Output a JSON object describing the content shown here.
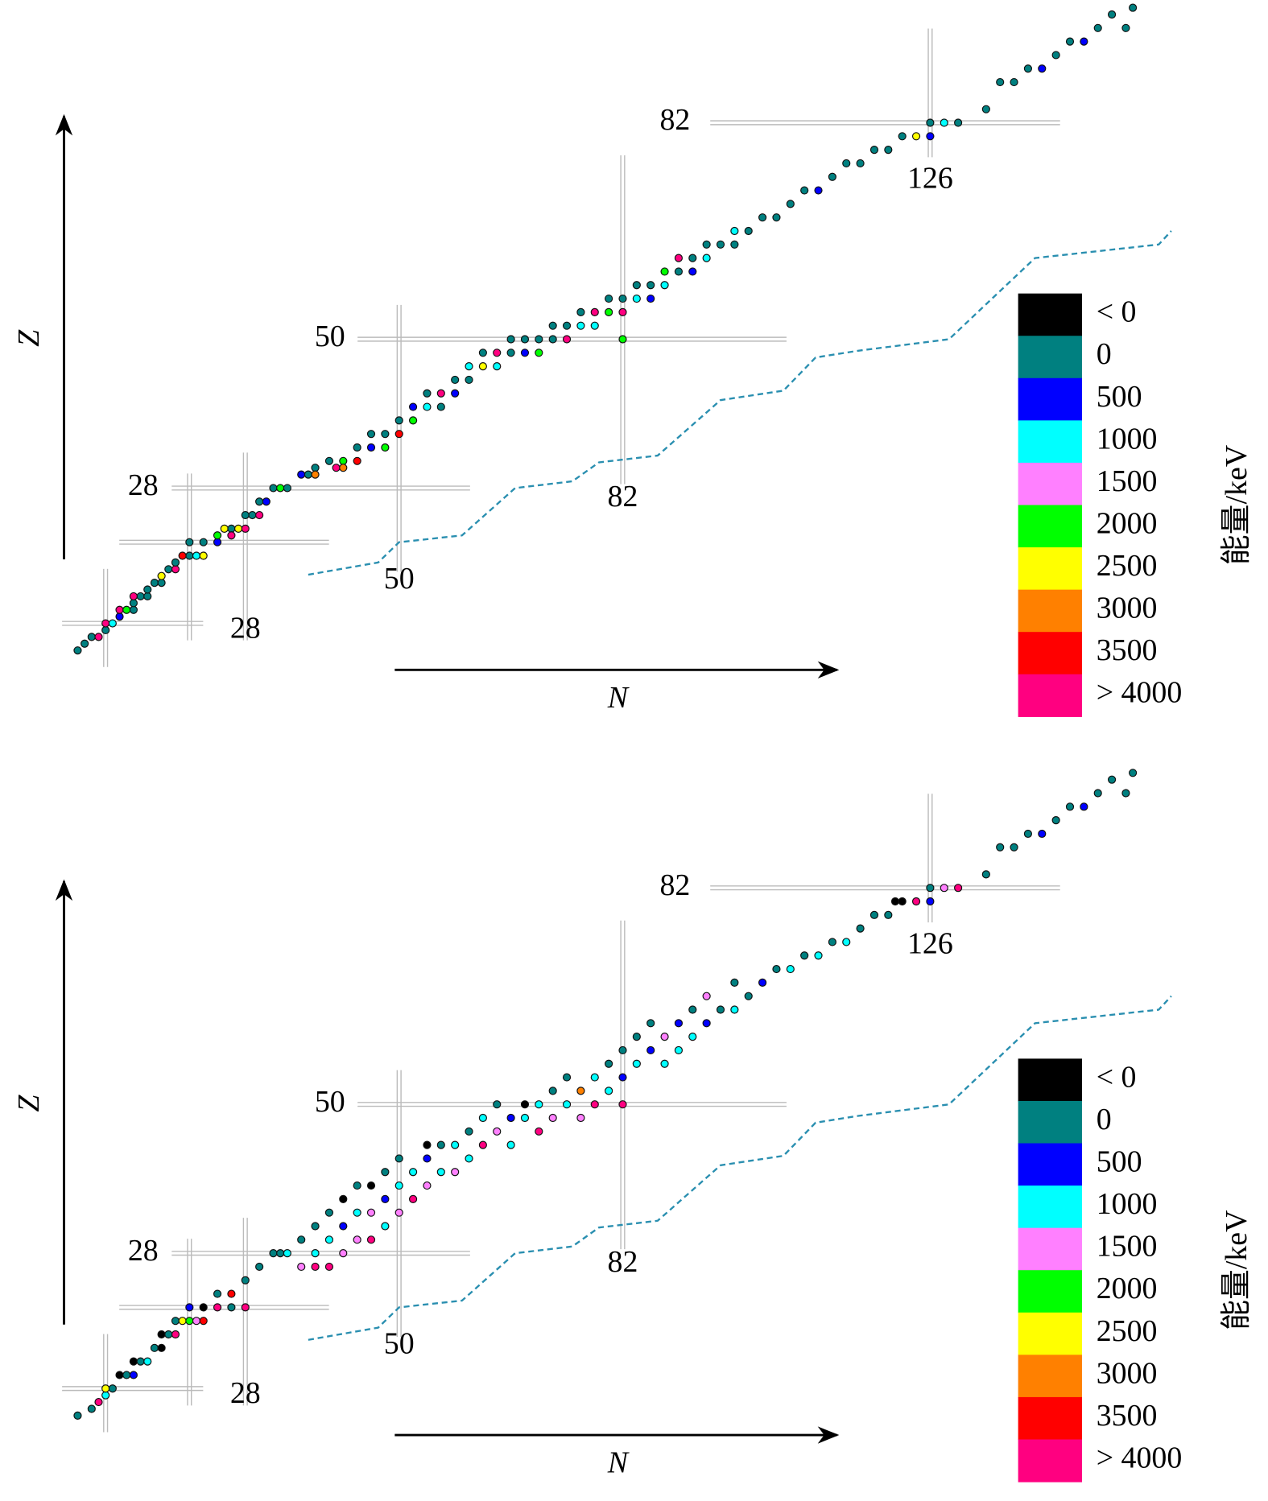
{
  "chart_data": [
    {
      "type": "nuclide-chart",
      "xlabel": "N",
      "ylabel": "Z",
      "xlim": [
        0,
        160
      ],
      "ylim": [
        0,
        100
      ],
      "xticks": [
        28,
        50,
        82,
        126
      ],
      "yticks": [
        28,
        50,
        82
      ],
      "magic_n": [
        8,
        20,
        28,
        50,
        82,
        126
      ],
      "magic_z": [
        8,
        20,
        28,
        50,
        82
      ],
      "dripline": {
        "x": [
          37,
          47,
          50,
          59,
          66.6,
          74.8,
          78.6,
          87,
          96,
          105,
          109.6,
          115.7,
          128.7,
          141,
          158.7,
          160.5
        ],
        "y": [
          15.2,
          17,
          20,
          21,
          28,
          29,
          31.8,
          32.8,
          41,
          42.4,
          47.3,
          48.3,
          50,
          62,
          64,
          66
        ],
        "color": "#2a8fb0"
      },
      "legend": {
        "title": "能量/keV",
        "labels": [
          "< 0",
          "0",
          "500",
          "1000",
          "1500",
          "2000",
          "2500",
          "3000",
          "3500",
          "> 4000"
        ],
        "colors": [
          "#000000",
          "#008080",
          "#0000ff",
          "#00ffff",
          "#ff80ff",
          "#00ff00",
          "#ffff00",
          "#ff8000",
          "#ff0000",
          "#ff0080"
        ]
      },
      "points": [
        [
          4,
          4,
          1
        ],
        [
          5,
          5,
          1
        ],
        [
          6,
          6,
          1
        ],
        [
          7,
          6,
          9
        ],
        [
          8,
          7,
          1
        ],
        [
          8,
          8,
          9
        ],
        [
          9,
          8,
          3
        ],
        [
          10,
          9,
          2
        ],
        [
          10,
          10,
          9
        ],
        [
          11,
          10,
          5
        ],
        [
          12,
          10,
          1
        ],
        [
          12,
          11,
          1
        ],
        [
          13,
          12,
          1
        ],
        [
          12,
          12,
          9
        ],
        [
          14,
          12,
          1
        ],
        [
          14,
          13,
          1
        ],
        [
          15,
          14,
          1
        ],
        [
          16,
          14,
          1
        ],
        [
          16,
          15,
          6
        ],
        [
          17,
          16,
          1
        ],
        [
          18,
          16,
          9
        ],
        [
          18,
          17,
          1
        ],
        [
          20,
          18,
          1
        ],
        [
          19,
          18,
          8
        ],
        [
          20,
          20,
          1
        ],
        [
          21,
          18,
          3
        ],
        [
          22,
          18,
          6
        ],
        [
          22,
          20,
          1
        ],
        [
          24,
          20,
          2
        ],
        [
          24,
          21,
          5
        ],
        [
          25,
          22,
          6
        ],
        [
          26,
          22,
          1
        ],
        [
          26,
          21,
          9
        ],
        [
          27,
          22,
          6
        ],
        [
          28,
          22,
          9
        ],
        [
          28,
          24,
          1
        ],
        [
          29,
          24,
          1
        ],
        [
          30,
          26,
          1
        ],
        [
          30,
          24,
          9
        ],
        [
          31,
          26,
          2
        ],
        [
          32,
          28,
          1
        ],
        [
          33,
          28,
          5
        ],
        [
          34,
          28,
          1
        ],
        [
          36,
          30,
          2
        ],
        [
          37,
          30,
          1
        ],
        [
          38,
          31,
          1
        ],
        [
          38,
          30,
          7
        ],
        [
          40,
          32,
          1
        ],
        [
          41,
          31,
          9
        ],
        [
          42,
          32,
          5
        ],
        [
          42,
          31,
          7
        ],
        [
          44,
          32,
          8
        ],
        [
          44,
          34,
          1
        ],
        [
          46,
          34,
          2
        ],
        [
          46,
          36,
          1
        ],
        [
          48,
          34,
          5
        ],
        [
          48,
          36,
          1
        ],
        [
          50,
          38,
          1
        ],
        [
          50,
          36,
          8
        ],
        [
          52,
          38,
          5
        ],
        [
          52,
          40,
          2
        ],
        [
          54,
          40,
          3
        ],
        [
          54,
          42,
          1
        ],
        [
          56,
          40,
          1
        ],
        [
          56,
          42,
          9
        ],
        [
          58,
          44,
          1
        ],
        [
          58,
          42,
          2
        ],
        [
          60,
          44,
          1
        ],
        [
          60,
          46,
          3
        ],
        [
          62,
          46,
          6
        ],
        [
          62,
          48,
          1
        ],
        [
          64,
          46,
          3
        ],
        [
          64,
          48,
          9
        ],
        [
          66,
          48,
          1
        ],
        [
          66,
          50,
          1
        ],
        [
          68,
          50,
          1
        ],
        [
          68,
          48,
          2
        ],
        [
          70,
          50,
          1
        ],
        [
          70,
          48,
          5
        ],
        [
          72,
          50,
          1
        ],
        [
          72,
          52,
          1
        ],
        [
          74,
          50,
          9
        ],
        [
          74,
          52,
          1
        ],
        [
          76,
          52,
          3
        ],
        [
          76,
          54,
          1
        ],
        [
          78,
          54,
          9
        ],
        [
          78,
          52,
          3
        ],
        [
          80,
          54,
          5
        ],
        [
          80,
          56,
          1
        ],
        [
          82,
          56,
          1
        ],
        [
          82,
          54,
          9
        ],
        [
          82,
          50,
          5
        ],
        [
          84,
          56,
          3
        ],
        [
          84,
          58,
          1
        ],
        [
          86,
          58,
          1
        ],
        [
          86,
          56,
          2
        ],
        [
          88,
          60,
          5
        ],
        [
          88,
          58,
          3
        ],
        [
          90,
          60,
          1
        ],
        [
          90,
          62,
          9
        ],
        [
          92,
          62,
          1
        ],
        [
          92,
          60,
          2
        ],
        [
          94,
          64,
          1
        ],
        [
          94,
          62,
          3
        ],
        [
          96,
          64,
          1
        ],
        [
          98,
          66,
          3
        ],
        [
          98,
          64,
          1
        ],
        [
          100,
          66,
          1
        ],
        [
          102,
          68,
          1
        ],
        [
          104,
          68,
          1
        ],
        [
          106,
          70,
          1
        ],
        [
          108,
          72,
          1
        ],
        [
          110,
          72,
          2
        ],
        [
          112,
          74,
          1
        ],
        [
          114,
          76,
          1
        ],
        [
          116,
          76,
          1
        ],
        [
          118,
          78,
          1
        ],
        [
          120,
          78,
          1
        ],
        [
          122,
          80,
          1
        ],
        [
          124,
          80,
          6
        ],
        [
          126,
          82,
          1
        ],
        [
          126,
          80,
          2
        ],
        [
          128,
          82,
          3
        ],
        [
          130,
          82,
          1
        ],
        [
          134,
          84,
          1
        ],
        [
          136,
          88,
          1
        ],
        [
          138,
          88,
          1
        ],
        [
          140,
          90,
          1
        ],
        [
          142,
          90,
          2
        ],
        [
          144,
          92,
          1
        ],
        [
          146,
          94,
          1
        ],
        [
          148,
          94,
          2
        ],
        [
          150,
          96,
          1
        ],
        [
          152,
          98,
          1
        ],
        [
          154,
          96,
          1
        ],
        [
          155,
          99,
          1
        ]
      ]
    },
    {
      "type": "nuclide-chart",
      "xlabel": "N",
      "ylabel": "Z",
      "xlim": [
        0,
        160
      ],
      "ylim": [
        0,
        100
      ],
      "xticks": [
        28,
        50,
        82,
        126
      ],
      "yticks": [
        28,
        50,
        82
      ],
      "magic_n": [
        8,
        20,
        28,
        50,
        82,
        126
      ],
      "magic_z": [
        8,
        20,
        28,
        50,
        82
      ],
      "dripline": {
        "x": [
          37,
          47,
          50,
          59,
          66.6,
          74.8,
          78.6,
          87,
          96,
          105,
          109.6,
          115.7,
          128.7,
          141,
          158.7,
          160.5
        ],
        "y": [
          15.2,
          17,
          20,
          21,
          28,
          29,
          31.8,
          32.8,
          41,
          42.4,
          47.3,
          48.3,
          50,
          62,
          64,
          66
        ],
        "color": "#2a8fb0"
      },
      "legend": {
        "title": "能量/keV",
        "labels": [
          "< 0",
          "0",
          "500",
          "1000",
          "1500",
          "2000",
          "2500",
          "3000",
          "3500",
          "> 4000"
        ],
        "colors": [
          "#000000",
          "#008080",
          "#0000ff",
          "#00ffff",
          "#ff80ff",
          "#00ff00",
          "#ffff00",
          "#ff8000",
          "#ff0000",
          "#ff0080"
        ]
      },
      "points": [
        [
          4,
          4,
          1
        ],
        [
          6,
          5,
          1
        ],
        [
          7,
          6,
          9
        ],
        [
          8,
          7,
          3
        ],
        [
          8,
          8,
          6
        ],
        [
          9,
          8,
          1
        ],
        [
          10,
          10,
          0
        ],
        [
          11,
          10,
          1
        ],
        [
          12,
          10,
          2
        ],
        [
          12,
          12,
          0
        ],
        [
          13,
          12,
          1
        ],
        [
          14,
          12,
          3
        ],
        [
          15,
          14,
          1
        ],
        [
          16,
          14,
          0
        ],
        [
          16,
          16,
          0
        ],
        [
          17,
          16,
          1
        ],
        [
          18,
          16,
          9
        ],
        [
          18,
          18,
          1
        ],
        [
          19,
          18,
          6
        ],
        [
          20,
          18,
          5
        ],
        [
          20,
          20,
          2
        ],
        [
          21,
          18,
          4
        ],
        [
          22,
          20,
          0
        ],
        [
          22,
          18,
          8
        ],
        [
          24,
          20,
          9
        ],
        [
          24,
          22,
          1
        ],
        [
          26,
          22,
          8
        ],
        [
          26,
          20,
          1
        ],
        [
          28,
          24,
          1
        ],
        [
          28,
          20,
          9
        ],
        [
          30,
          26,
          1
        ],
        [
          32,
          28,
          1
        ],
        [
          33,
          28,
          1
        ],
        [
          34,
          28,
          3
        ],
        [
          36,
          30,
          1
        ],
        [
          36,
          26,
          4
        ],
        [
          38,
          26,
          9
        ],
        [
          38,
          28,
          3
        ],
        [
          38,
          32,
          1
        ],
        [
          40,
          26,
          9
        ],
        [
          40,
          30,
          3
        ],
        [
          40,
          34,
          1
        ],
        [
          42,
          28,
          4
        ],
        [
          42,
          32,
          2
        ],
        [
          42,
          36,
          0
        ],
        [
          44,
          30,
          4
        ],
        [
          44,
          34,
          3
        ],
        [
          44,
          38,
          1
        ],
        [
          46,
          30,
          9
        ],
        [
          46,
          34,
          4
        ],
        [
          46,
          38,
          0
        ],
        [
          48,
          32,
          3
        ],
        [
          48,
          36,
          2
        ],
        [
          48,
          40,
          1
        ],
        [
          50,
          34,
          4
        ],
        [
          50,
          38,
          3
        ],
        [
          50,
          42,
          1
        ],
        [
          52,
          36,
          9
        ],
        [
          52,
          40,
          3
        ],
        [
          54,
          38,
          4
        ],
        [
          54,
          42,
          2
        ],
        [
          54,
          44,
          0
        ],
        [
          56,
          40,
          3
        ],
        [
          56,
          44,
          1
        ],
        [
          58,
          40,
          4
        ],
        [
          58,
          44,
          3
        ],
        [
          60,
          42,
          3
        ],
        [
          60,
          46,
          1
        ],
        [
          62,
          44,
          9
        ],
        [
          62,
          48,
          3
        ],
        [
          64,
          46,
          4
        ],
        [
          64,
          50,
          1
        ],
        [
          66,
          44,
          3
        ],
        [
          66,
          48,
          2
        ],
        [
          68,
          48,
          3
        ],
        [
          68,
          50,
          0
        ],
        [
          70,
          46,
          9
        ],
        [
          70,
          50,
          3
        ],
        [
          72,
          48,
          4
        ],
        [
          72,
          52,
          1
        ],
        [
          74,
          50,
          3
        ],
        [
          74,
          54,
          1
        ],
        [
          76,
          52,
          7
        ],
        [
          76,
          48,
          4
        ],
        [
          78,
          50,
          9
        ],
        [
          78,
          54,
          3
        ],
        [
          80,
          52,
          3
        ],
        [
          80,
          56,
          1
        ],
        [
          82,
          54,
          2
        ],
        [
          82,
          58,
          1
        ],
        [
          82,
          50,
          9
        ],
        [
          84,
          56,
          3
        ],
        [
          84,
          60,
          1
        ],
        [
          86,
          58,
          2
        ],
        [
          86,
          62,
          1
        ],
        [
          88,
          60,
          4
        ],
        [
          88,
          56,
          3
        ],
        [
          90,
          62,
          2
        ],
        [
          90,
          58,
          3
        ],
        [
          92,
          64,
          1
        ],
        [
          92,
          60,
          3
        ],
        [
          94,
          66,
          4
        ],
        [
          94,
          62,
          2
        ],
        [
          96,
          64,
          1
        ],
        [
          98,
          68,
          1
        ],
        [
          98,
          64,
          3
        ],
        [
          100,
          66,
          1
        ],
        [
          102,
          68,
          2
        ],
        [
          104,
          70,
          1
        ],
        [
          106,
          70,
          3
        ],
        [
          108,
          72,
          1
        ],
        [
          110,
          72,
          3
        ],
        [
          112,
          74,
          1
        ],
        [
          114,
          74,
          3
        ],
        [
          116,
          76,
          1
        ],
        [
          118,
          78,
          1
        ],
        [
          120,
          78,
          1
        ],
        [
          121,
          80,
          0
        ],
        [
          122,
          80,
          0
        ],
        [
          124,
          80,
          9
        ],
        [
          126,
          82,
          1
        ],
        [
          126,
          80,
          2
        ],
        [
          128,
          82,
          4
        ],
        [
          130,
          82,
          9
        ],
        [
          134,
          84,
          1
        ],
        [
          136,
          88,
          1
        ],
        [
          138,
          88,
          1
        ],
        [
          140,
          90,
          1
        ],
        [
          142,
          90,
          2
        ],
        [
          144,
          92,
          1
        ],
        [
          146,
          94,
          1
        ],
        [
          148,
          94,
          2
        ],
        [
          150,
          96,
          1
        ],
        [
          152,
          98,
          1
        ],
        [
          154,
          96,
          1
        ],
        [
          155,
          99,
          1
        ]
      ]
    }
  ]
}
